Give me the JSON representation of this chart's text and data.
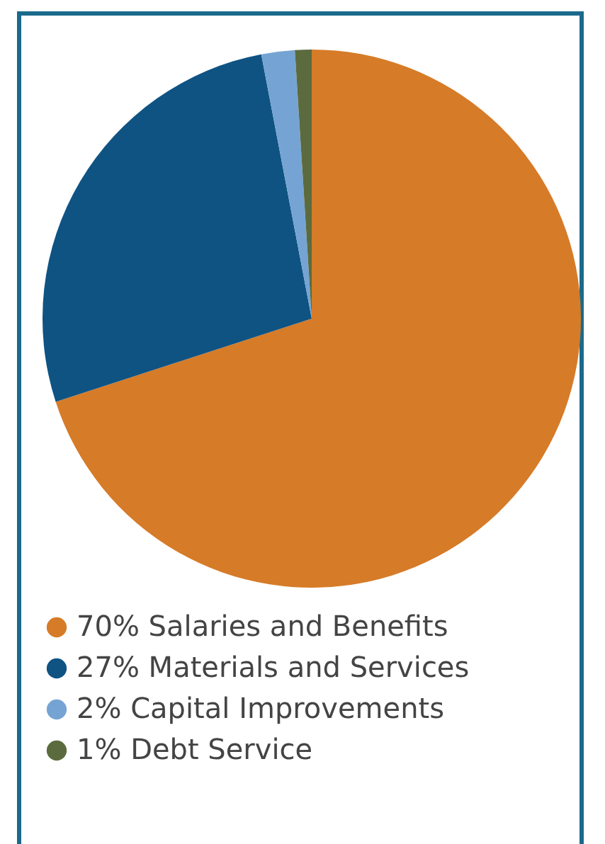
{
  "chart_data": {
    "type": "pie",
    "categories": [
      "Salaries and Benefits",
      "Materials and Services",
      "Capital Improvements",
      "Debt Service"
    ],
    "values": [
      70,
      27,
      2,
      1
    ],
    "value_labels": [
      "70%",
      "27%",
      "2%",
      "1%"
    ],
    "colors": [
      "#d67b28",
      "#0f5383",
      "#75a4d4",
      "#5b6b3e"
    ],
    "legend": "bottom"
  }
}
